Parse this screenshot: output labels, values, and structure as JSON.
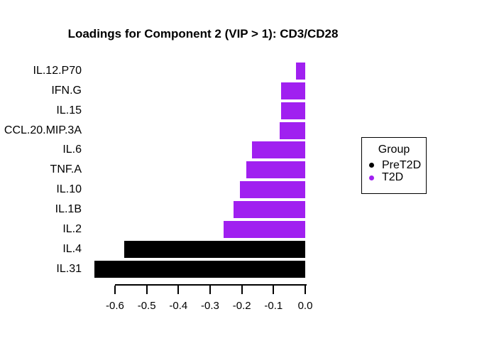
{
  "chart_data": {
    "type": "bar",
    "orientation": "horizontal",
    "title": "Loadings for Component 2 (VIP > 1): CD3/CD28",
    "categories": [
      "IL.12.P70",
      "IFN.G",
      "IL.15",
      "CCL.20.MIP.3A",
      "IL.6",
      "TNF.A",
      "IL.10",
      "IL.1B",
      "IL.2",
      "IL.4",
      "IL.31"
    ],
    "values": [
      -0.028,
      -0.075,
      -0.075,
      -0.08,
      -0.169,
      -0.186,
      -0.205,
      -0.225,
      -0.257,
      -0.57,
      -0.665
    ],
    "groups": [
      "T2D",
      "T2D",
      "T2D",
      "T2D",
      "T2D",
      "T2D",
      "T2D",
      "T2D",
      "T2D",
      "PreT2D",
      "PreT2D"
    ],
    "group_colors": {
      "PreT2D": "#000000",
      "T2D": "#A020F0"
    },
    "xlabel": "",
    "ylabel": "",
    "xlim": [
      -0.67,
      0.0
    ],
    "x_ticks": [
      -0.6,
      -0.5,
      -0.4,
      -0.3,
      -0.2,
      -0.1,
      0.0
    ],
    "x_tick_labels": [
      "-0.6",
      "-0.5",
      "-0.4",
      "-0.3",
      "-0.2",
      "-0.1",
      "0.0"
    ],
    "grid": false,
    "legend": {
      "title": "Group",
      "position": "right",
      "entries": [
        {
          "label": "PreT2D",
          "color": "#000000"
        },
        {
          "label": "T2D",
          "color": "#A020F0"
        }
      ]
    }
  }
}
